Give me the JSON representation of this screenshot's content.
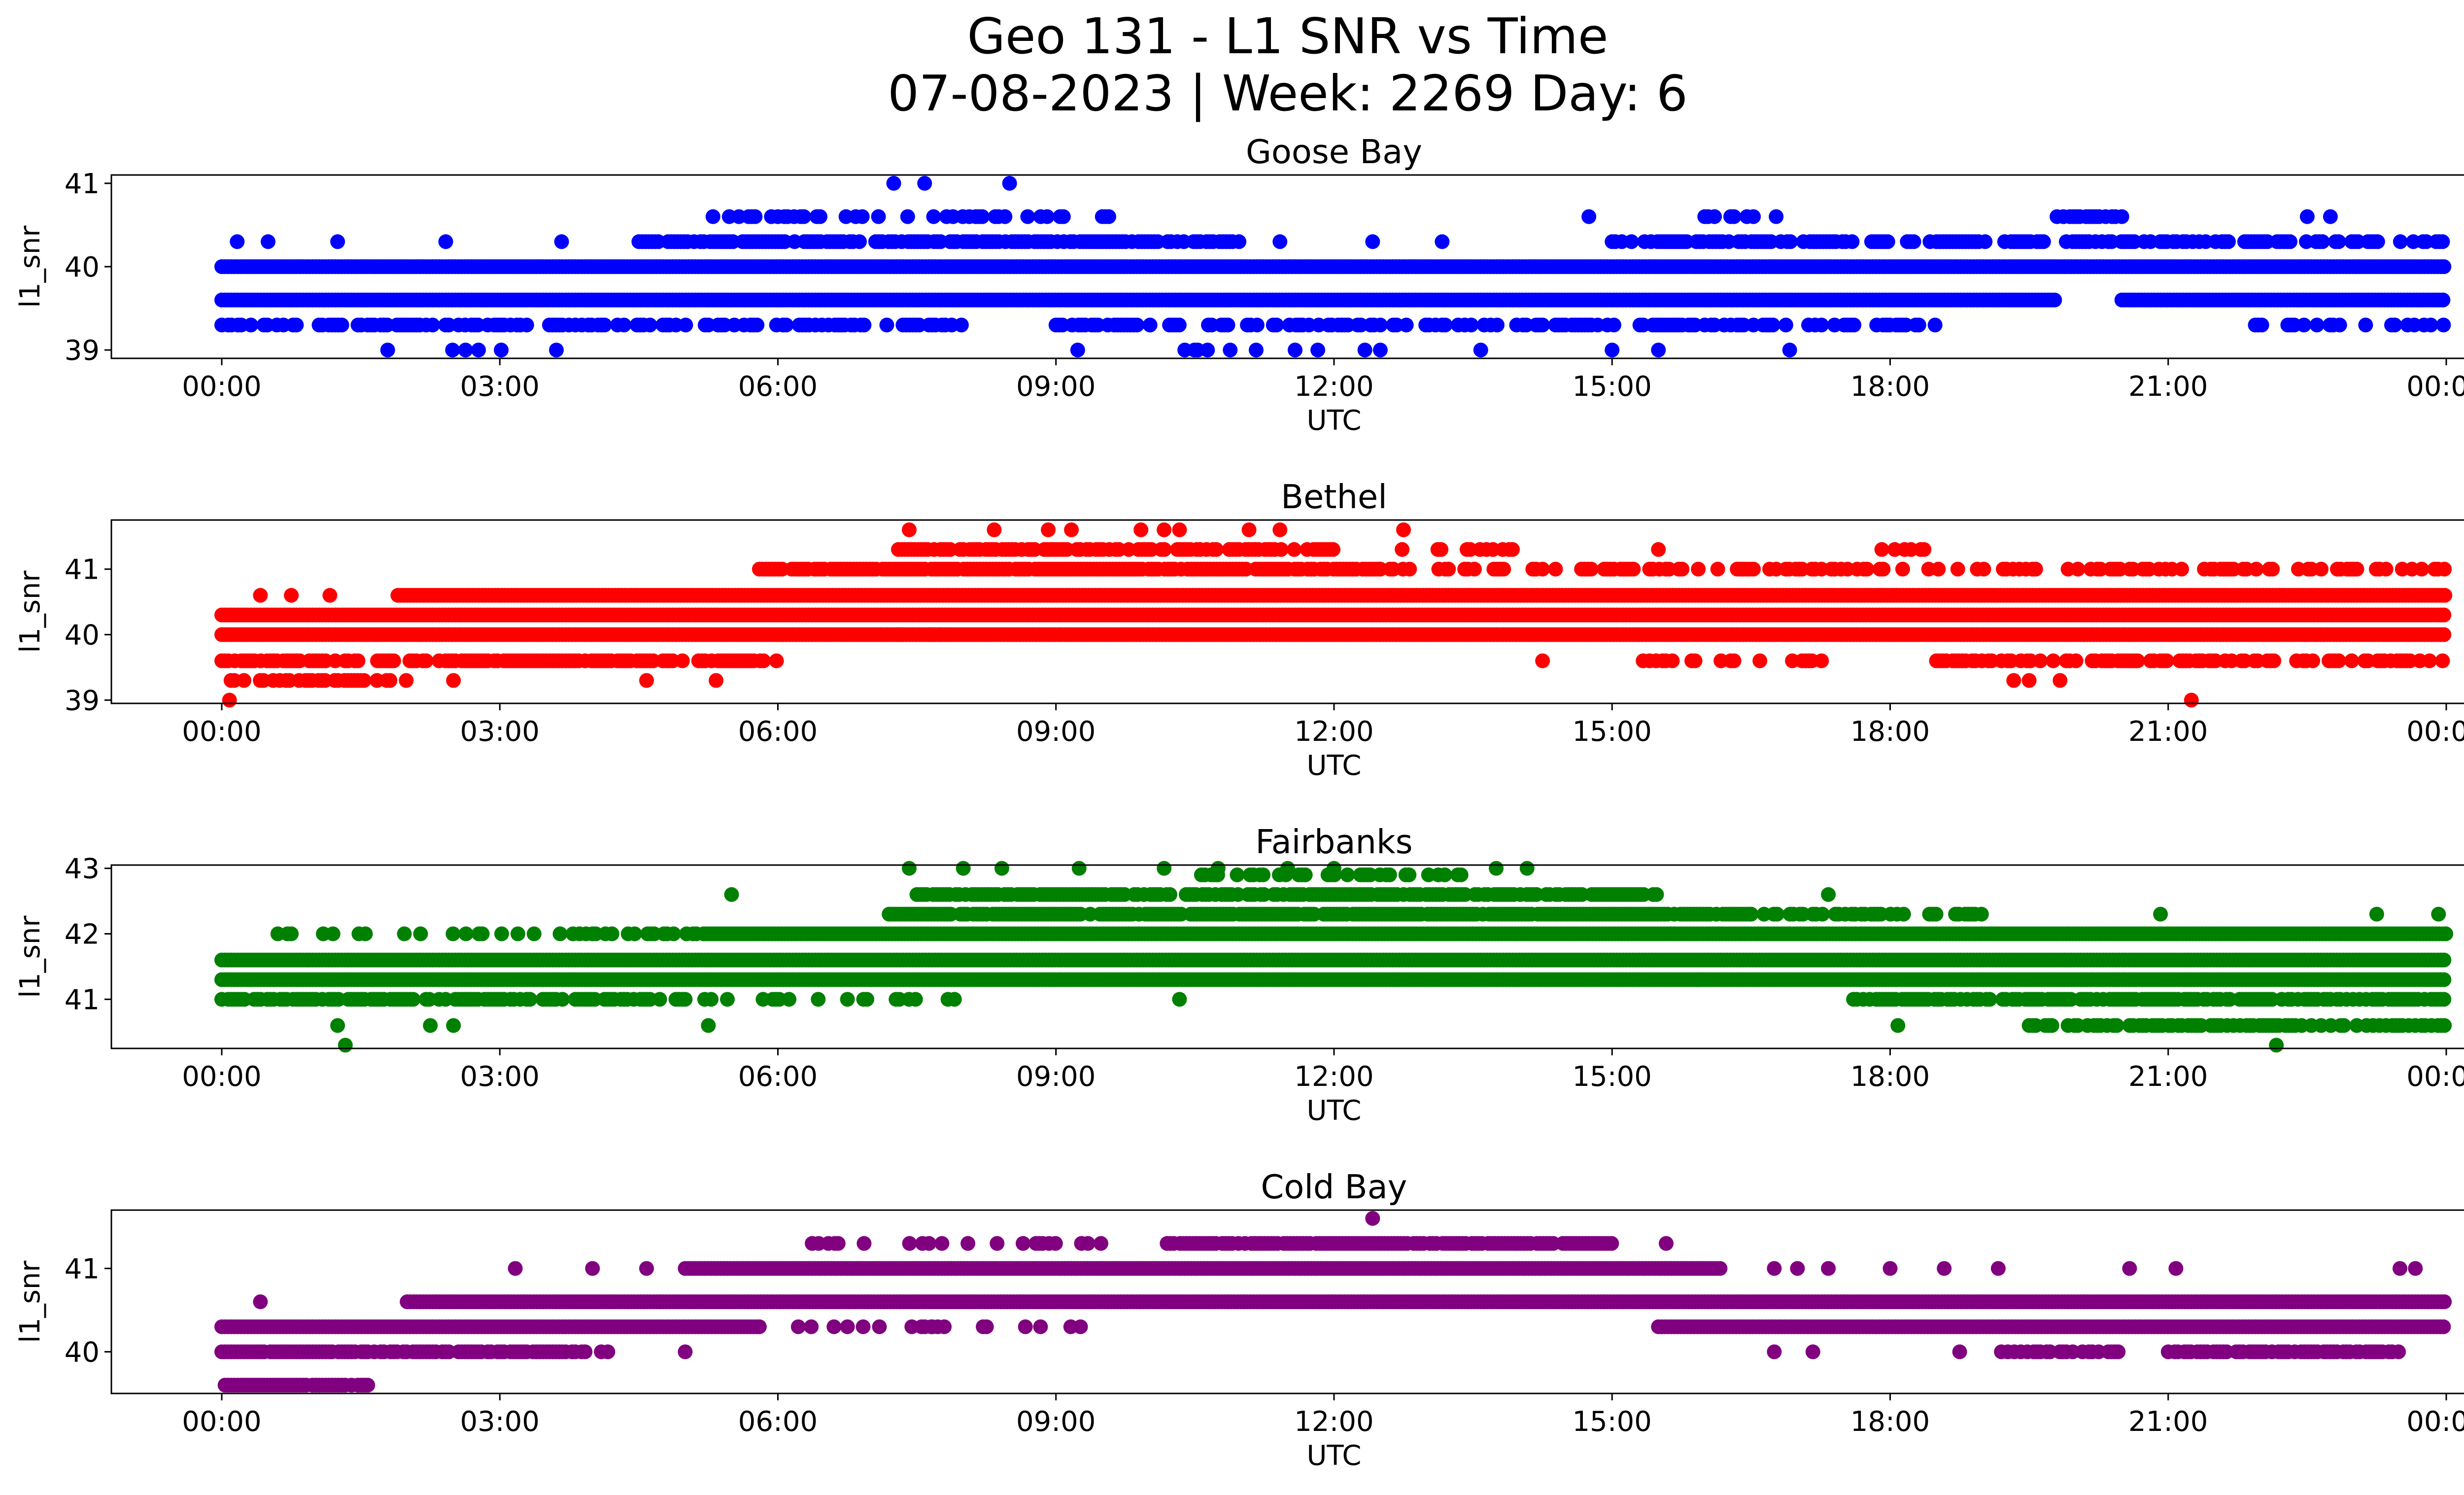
{
  "figure": {
    "title_line1": "Geo 131 - L1 SNR vs Time",
    "title_line2": "07-08-2023 | Week: 2269 Day: 6"
  },
  "chart_data": [
    {
      "type": "scatter",
      "title": "Goose Bay",
      "xlabel": "UTC",
      "ylabel": "l1_snr",
      "color": "#0000ff",
      "xlim": [
        "00:00",
        "24:00"
      ],
      "ylim": [
        38.9,
        41.1
      ],
      "xticks": [
        "00:00",
        "03:00",
        "06:00",
        "09:00",
        "12:00",
        "15:00",
        "18:00",
        "21:00",
        "00:00"
      ],
      "yticks": [
        "39",
        "40",
        "41"
      ],
      "bands": [
        {
          "y": 39.6,
          "from": 0.0,
          "to": 19.8,
          "density": 1.0
        },
        {
          "y": 39.6,
          "from": 20.5,
          "to": 24.0,
          "density": 1.0
        },
        {
          "y": 40.0,
          "from": 0.0,
          "to": 24.0,
          "density": 1.0
        },
        {
          "y": 39.3,
          "from": 0.0,
          "to": 8.0,
          "density": 0.55
        },
        {
          "y": 39.3,
          "from": 9.0,
          "to": 18.5,
          "density": 0.55
        },
        {
          "y": 39.3,
          "from": 21.8,
          "to": 24.0,
          "density": 0.25
        },
        {
          "y": 40.3,
          "from": 4.5,
          "to": 11.0,
          "density": 0.75
        },
        {
          "y": 40.3,
          "from": 15.0,
          "to": 24.0,
          "density": 0.6
        },
        {
          "y": 40.6,
          "from": 5.3,
          "to": 9.8,
          "density": 0.35
        },
        {
          "y": 40.6,
          "from": 16.0,
          "to": 16.8,
          "density": 0.4
        },
        {
          "y": 40.6,
          "from": 19.8,
          "to": 20.5,
          "density": 0.5
        },
        {
          "y": 39.0,
          "from": 1.3,
          "to": 3.8,
          "density": 0.12
        },
        {
          "y": 39.0,
          "from": 9.2,
          "to": 11.9,
          "density": 0.1
        }
      ],
      "points": [
        {
          "x": "00:10",
          "y": 40.3
        },
        {
          "x": "00:30",
          "y": 40.3
        },
        {
          "x": "01:15",
          "y": 40.3
        },
        {
          "x": "02:25",
          "y": 40.3
        },
        {
          "x": "03:40",
          "y": 40.3
        },
        {
          "x": "07:15",
          "y": 41.0
        },
        {
          "x": "07:35",
          "y": 41.0
        },
        {
          "x": "08:30",
          "y": 41.0
        },
        {
          "x": "12:20",
          "y": 39.0
        },
        {
          "x": "12:30",
          "y": 39.0
        },
        {
          "x": "13:35",
          "y": 39.0
        },
        {
          "x": "14:45",
          "y": 40.6
        },
        {
          "x": "15:00",
          "y": 39.0
        },
        {
          "x": "15:30",
          "y": 39.0
        },
        {
          "x": "16:55",
          "y": 39.0
        },
        {
          "x": "22:30",
          "y": 40.6
        },
        {
          "x": "22:45",
          "y": 40.6
        },
        {
          "x": "11:25",
          "y": 40.3
        },
        {
          "x": "12:25",
          "y": 40.3
        },
        {
          "x": "13:10",
          "y": 40.3
        },
        {
          "x": "23:35",
          "y": 39.3
        },
        {
          "x": "23:50",
          "y": 39.3
        },
        {
          "x": "20:30",
          "y": 40.6
        }
      ]
    },
    {
      "type": "scatter",
      "title": "Bethel",
      "xlabel": "UTC",
      "ylabel": "l1_snr",
      "color": "#ff0000",
      "xlim": [
        "00:00",
        "24:00"
      ],
      "ylim": [
        38.95,
        41.75
      ],
      "xticks": [
        "00:00",
        "03:00",
        "06:00",
        "09:00",
        "12:00",
        "15:00",
        "18:00",
        "21:00",
        "00:00"
      ],
      "yticks": [
        "39",
        "40",
        "41"
      ],
      "bands": [
        {
          "y": 40.0,
          "from": 0.0,
          "to": 24.0,
          "density": 1.0
        },
        {
          "y": 40.3,
          "from": 0.0,
          "to": 24.0,
          "density": 1.0
        },
        {
          "y": 40.6,
          "from": 1.9,
          "to": 24.0,
          "density": 1.0
        },
        {
          "y": 39.6,
          "from": 0.0,
          "to": 6.0,
          "density": 0.75
        },
        {
          "y": 39.6,
          "from": 18.5,
          "to": 24.0,
          "density": 0.6
        },
        {
          "y": 39.3,
          "from": 0.1,
          "to": 2.0,
          "density": 0.6
        },
        {
          "y": 41.0,
          "from": 5.8,
          "to": 12.5,
          "density": 0.9
        },
        {
          "y": 41.0,
          "from": 12.5,
          "to": 24.0,
          "density": 0.35
        },
        {
          "y": 41.3,
          "from": 7.3,
          "to": 12.0,
          "density": 0.7
        },
        {
          "y": 41.3,
          "from": 12.7,
          "to": 14.0,
          "density": 0.4
        },
        {
          "y": 41.3,
          "from": 17.7,
          "to": 18.4,
          "density": 0.5
        },
        {
          "y": 40.0,
          "from": 7.0,
          "to": 8.0,
          "density": 0.3
        },
        {
          "y": 39.6,
          "from": 15.3,
          "to": 17.3,
          "density": 0.35
        }
      ],
      "points": [
        {
          "x": "00:05",
          "y": 39.0
        },
        {
          "x": "21:15",
          "y": 39.0
        },
        {
          "x": "00:25",
          "y": 40.6
        },
        {
          "x": "00:45",
          "y": 40.6
        },
        {
          "x": "01:10",
          "y": 40.6
        },
        {
          "x": "07:25",
          "y": 41.6
        },
        {
          "x": "08:20",
          "y": 41.6
        },
        {
          "x": "08:55",
          "y": 41.6
        },
        {
          "x": "09:10",
          "y": 41.6
        },
        {
          "x": "09:55",
          "y": 41.6
        },
        {
          "x": "10:10",
          "y": 41.6
        },
        {
          "x": "10:20",
          "y": 41.6
        },
        {
          "x": "11:05",
          "y": 41.6
        },
        {
          "x": "11:25",
          "y": 41.6
        },
        {
          "x": "12:45",
          "y": 41.6
        },
        {
          "x": "14:15",
          "y": 39.6
        },
        {
          "x": "02:30",
          "y": 39.3
        },
        {
          "x": "04:35",
          "y": 39.3
        },
        {
          "x": "05:20",
          "y": 39.3
        },
        {
          "x": "19:20",
          "y": 39.3
        },
        {
          "x": "19:30",
          "y": 39.3
        },
        {
          "x": "19:50",
          "y": 39.3
        },
        {
          "x": "15:30",
          "y": 41.3
        }
      ]
    },
    {
      "type": "scatter",
      "title": "Fairbanks",
      "xlabel": "UTC",
      "ylabel": "l1_snr",
      "color": "#008000",
      "xlim": [
        "00:00",
        "24:00"
      ],
      "ylim": [
        40.25,
        43.05
      ],
      "xticks": [
        "00:00",
        "03:00",
        "06:00",
        "09:00",
        "12:00",
        "15:00",
        "18:00",
        "21:00",
        "00:00"
      ],
      "yticks": [
        "41",
        "42",
        "43"
      ],
      "bands": [
        {
          "y": 41.3,
          "from": 0.0,
          "to": 24.0,
          "density": 1.0
        },
        {
          "y": 41.6,
          "from": 0.0,
          "to": 24.0,
          "density": 1.0
        },
        {
          "y": 42.0,
          "from": 5.2,
          "to": 24.0,
          "density": 1.0
        },
        {
          "y": 41.0,
          "from": 0.0,
          "to": 5.0,
          "density": 0.7
        },
        {
          "y": 41.0,
          "from": 17.5,
          "to": 24.0,
          "density": 0.75
        },
        {
          "y": 42.3,
          "from": 7.2,
          "to": 16.5,
          "density": 0.9
        },
        {
          "y": 42.3,
          "from": 16.5,
          "to": 19.0,
          "density": 0.5
        },
        {
          "y": 42.6,
          "from": 7.5,
          "to": 15.5,
          "density": 0.8
        },
        {
          "y": 42.0,
          "from": 0.5,
          "to": 5.2,
          "density": 0.3
        },
        {
          "y": 40.6,
          "from": 19.5,
          "to": 24.0,
          "density": 0.6
        },
        {
          "y": 41.0,
          "from": 5.0,
          "to": 8.0,
          "density": 0.25
        },
        {
          "y": 42.9,
          "from": 10.5,
          "to": 13.5,
          "density": 0.4
        }
      ],
      "points": [
        {
          "x": "00:45",
          "y": 42.0
        },
        {
          "x": "01:15",
          "y": 40.6
        },
        {
          "x": "01:20",
          "y": 40.3
        },
        {
          "x": "02:15",
          "y": 40.6
        },
        {
          "x": "02:30",
          "y": 40.6
        },
        {
          "x": "05:15",
          "y": 40.6
        },
        {
          "x": "05:30",
          "y": 42.6
        },
        {
          "x": "07:25",
          "y": 43.0
        },
        {
          "x": "08:00",
          "y": 43.0
        },
        {
          "x": "08:25",
          "y": 43.0
        },
        {
          "x": "09:15",
          "y": 43.0
        },
        {
          "x": "10:10",
          "y": 43.0
        },
        {
          "x": "10:45",
          "y": 43.0
        },
        {
          "x": "11:30",
          "y": 43.0
        },
        {
          "x": "12:00",
          "y": 43.0
        },
        {
          "x": "13:45",
          "y": 43.0
        },
        {
          "x": "14:05",
          "y": 43.0
        },
        {
          "x": "17:20",
          "y": 42.6
        },
        {
          "x": "18:05",
          "y": 40.6
        },
        {
          "x": "20:55",
          "y": 42.3
        },
        {
          "x": "22:10",
          "y": 40.3
        },
        {
          "x": "23:15",
          "y": 42.3
        },
        {
          "x": "23:55",
          "y": 42.3
        },
        {
          "x": "10:20",
          "y": 41.0
        },
        {
          "x": "15:55",
          "y": 41.3
        }
      ]
    },
    {
      "type": "scatter",
      "title": "Cold Bay",
      "xlabel": "UTC",
      "ylabel": "l1_snr",
      "color": "#800080",
      "xlim": [
        "00:00",
        "24:00"
      ],
      "ylim": [
        39.5,
        41.7
      ],
      "xticks": [
        "00:00",
        "03:00",
        "06:00",
        "09:00",
        "12:00",
        "15:00",
        "18:00",
        "21:00",
        "00:00"
      ],
      "yticks": [
        "40",
        "41"
      ],
      "bands": [
        {
          "y": 40.3,
          "from": 0.0,
          "to": 5.8,
          "density": 1.0
        },
        {
          "y": 40.3,
          "from": 15.5,
          "to": 24.0,
          "density": 1.0
        },
        {
          "y": 40.0,
          "from": 0.0,
          "to": 4.2,
          "density": 0.8
        },
        {
          "y": 40.0,
          "from": 19.2,
          "to": 20.5,
          "density": 0.6
        },
        {
          "y": 40.0,
          "from": 21.0,
          "to": 23.5,
          "density": 0.7
        },
        {
          "y": 39.6,
          "from": 0.0,
          "to": 1.6,
          "density": 0.8
        },
        {
          "y": 40.6,
          "from": 2.0,
          "to": 24.0,
          "density": 1.0
        },
        {
          "y": 41.0,
          "from": 5.0,
          "to": 16.2,
          "density": 1.0
        },
        {
          "y": 41.3,
          "from": 10.2,
          "to": 15.0,
          "density": 0.9
        },
        {
          "y": 41.3,
          "from": 6.3,
          "to": 9.5,
          "density": 0.3
        },
        {
          "y": 40.3,
          "from": 5.8,
          "to": 9.5,
          "density": 0.2
        }
      ],
      "points": [
        {
          "x": "00:25",
          "y": 40.6
        },
        {
          "x": "03:10",
          "y": 41.0
        },
        {
          "x": "04:00",
          "y": 41.0
        },
        {
          "x": "04:35",
          "y": 41.0
        },
        {
          "x": "12:25",
          "y": 41.6
        },
        {
          "x": "15:35",
          "y": 41.3
        },
        {
          "x": "16:45",
          "y": 41.0
        },
        {
          "x": "17:00",
          "y": 41.0
        },
        {
          "x": "17:20",
          "y": 41.0
        },
        {
          "x": "18:00",
          "y": 41.0
        },
        {
          "x": "18:35",
          "y": 41.0
        },
        {
          "x": "19:10",
          "y": 41.0
        },
        {
          "x": "20:35",
          "y": 41.0
        },
        {
          "x": "21:05",
          "y": 41.0
        },
        {
          "x": "23:30",
          "y": 41.0
        },
        {
          "x": "23:40",
          "y": 41.0
        },
        {
          "x": "18:45",
          "y": 40.0
        },
        {
          "x": "05:00",
          "y": 40.0
        },
        {
          "x": "06:45",
          "y": 40.3
        },
        {
          "x": "07:40",
          "y": 40.3
        },
        {
          "x": "08:50",
          "y": 40.3
        },
        {
          "x": "16:45",
          "y": 40.0
        },
        {
          "x": "17:10",
          "y": 40.0
        }
      ]
    }
  ]
}
